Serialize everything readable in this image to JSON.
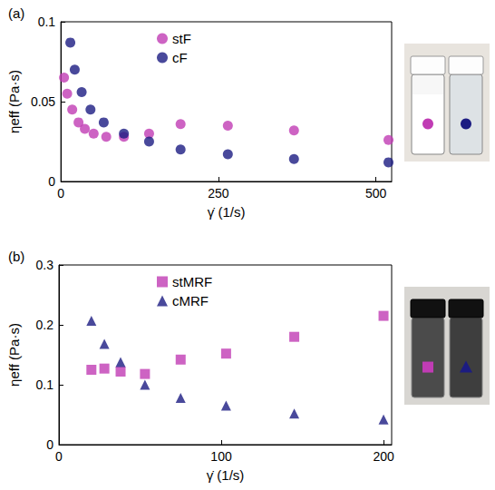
{
  "chart_data": [
    {
      "type": "scatter",
      "title": "(a)",
      "x_label": "γ̇ (1/s)",
      "y_label": "ηeff (Pa·s)",
      "xlim": [
        0,
        525
      ],
      "xticks": [
        0,
        250,
        500
      ],
      "ylim": [
        0,
        0.1
      ],
      "yticks": [
        0,
        0.05,
        0.1
      ],
      "grid": false,
      "legend": "top",
      "series": [
        {
          "name": "stF",
          "color": "#c03cb4",
          "marker": "circle",
          "x": [
            5,
            10,
            18,
            28,
            38,
            52,
            72,
            100,
            140,
            190,
            265,
            370,
            520
          ],
          "values": [
            0.065,
            0.055,
            0.045,
            0.037,
            0.033,
            0.03,
            0.028,
            0.028,
            0.03,
            0.036,
            0.035,
            0.032,
            0.026
          ]
        },
        {
          "name": "cF",
          "color": "#1c1c82",
          "marker": "circle",
          "x": [
            15,
            22,
            33,
            47,
            68,
            100,
            140,
            190,
            265,
            370,
            520
          ],
          "values": [
            0.087,
            0.07,
            0.056,
            0.045,
            0.037,
            0.03,
            0.025,
            0.02,
            0.017,
            0.014,
            0.012
          ]
        }
      ]
    },
    {
      "type": "scatter",
      "title": "(b)",
      "x_label": "γ̇ (1/s)",
      "y_label": "ηeff (Pa·s)",
      "xlim": [
        0,
        205
      ],
      "xticks": [
        0,
        100,
        200
      ],
      "ylim": [
        0,
        0.3
      ],
      "yticks": [
        0,
        0.1,
        0.2,
        0.3
      ],
      "grid": false,
      "legend": "top",
      "series": [
        {
          "name": "stMRF",
          "color": "#c03cb4",
          "marker": "square",
          "x": [
            20,
            28,
            38,
            53,
            75,
            103,
            145,
            200
          ],
          "values": [
            0.125,
            0.127,
            0.122,
            0.118,
            0.142,
            0.152,
            0.18,
            0.215
          ]
        },
        {
          "name": "cMRF",
          "color": "#1c1c82",
          "marker": "triangle",
          "x": [
            20,
            28,
            38,
            53,
            75,
            103,
            145,
            200
          ],
          "values": [
            0.207,
            0.168,
            0.138,
            0.1,
            0.078,
            0.065,
            0.052,
            0.042
          ]
        }
      ]
    }
  ]
}
